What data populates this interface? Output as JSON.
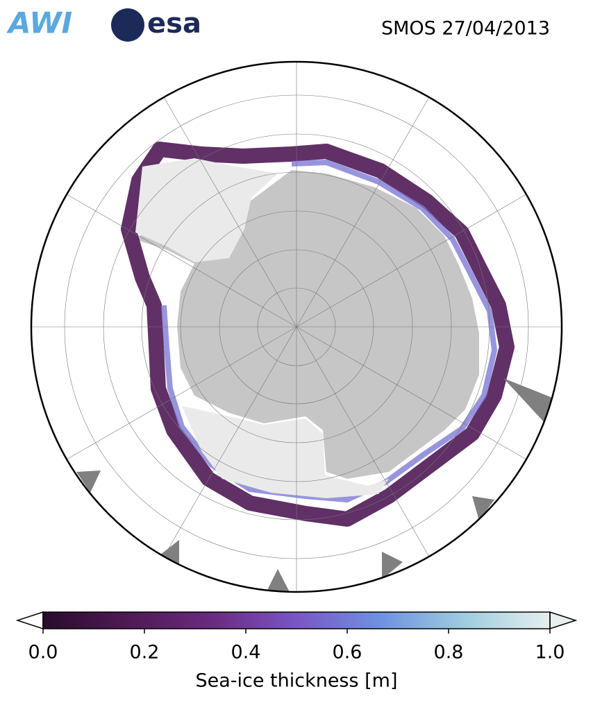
{
  "header": {
    "logos": [
      "AWI",
      "esa"
    ],
    "title": "SMOS 27/04/2013"
  },
  "chart_data": {
    "type": "colorbar",
    "xlim": [
      0,
      1
    ],
    "xticks": [
      {
        "value": 0,
        "label": "0.0"
      },
      {
        "value": 0.2,
        "label": "0.2"
      },
      {
        "value": 0.4,
        "label": "0.4"
      },
      {
        "value": 0.6,
        "label": "0.6"
      },
      {
        "value": 0.8,
        "label": "0.8"
      },
      {
        "value": 1,
        "label": "1.0"
      }
    ],
    "xlabel": "Sea-ice thickness [m]",
    "colors": [
      "#2a0c2c",
      "#4f1a55",
      "#6a2a80",
      "#7a56c4",
      "#6f92e0",
      "#9fcde0",
      "#e6eeee"
    ]
  }
}
